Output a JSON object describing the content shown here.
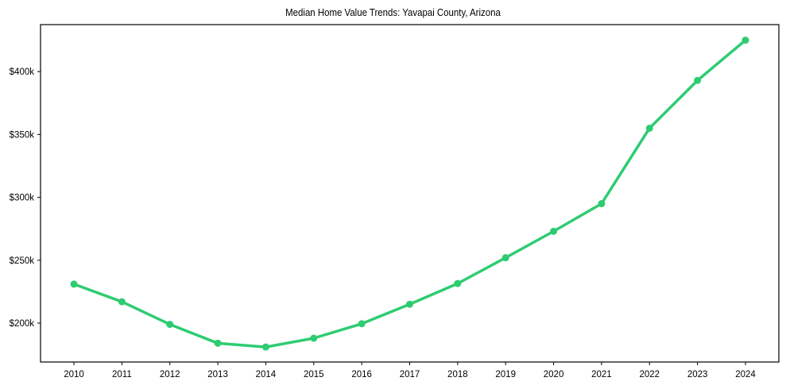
{
  "chart_data": {
    "type": "line",
    "title": "Median Home Value Trends: Yavapai County, Arizona",
    "xlabel": "",
    "ylabel": "",
    "categories": [
      "2010",
      "2011",
      "2012",
      "2013",
      "2014",
      "2015",
      "2016",
      "2017",
      "2018",
      "2019",
      "2020",
      "2021",
      "2022",
      "2023",
      "2024"
    ],
    "series": [
      {
        "name": "Median Home Value",
        "color": "#2ecc71",
        "values": [
          231000,
          217000,
          199000,
          184000,
          181000,
          188000,
          199500,
          215000,
          231500,
          252000,
          273000,
          295000,
          355000,
          393000,
          425000
        ]
      }
    ],
    "yticks": [
      200000,
      250000,
      300000,
      350000,
      400000
    ],
    "ytick_labels": [
      "$200k",
      "$250k",
      "$300k",
      "$350k",
      "$400k"
    ],
    "ylim": [
      169000,
      437000
    ],
    "grid": false,
    "legend": null
  }
}
